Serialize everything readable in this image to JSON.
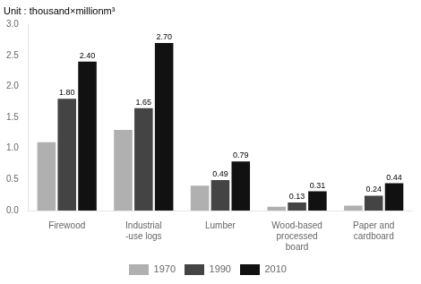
{
  "chart_data": {
    "type": "bar",
    "ylabel": "Unit : thousand×millionm³",
    "categories": [
      "Firewood",
      "Industrial\n-use logs",
      "Lumber",
      "Wood-based\nprocessed\nboard",
      "Paper and\ncardboard"
    ],
    "series": [
      {
        "name": "1970",
        "color": "#b0b0b0",
        "values": [
          1.1,
          1.3,
          0.4,
          0.06,
          0.08
        ]
      },
      {
        "name": "1990",
        "color": "#444444",
        "values": [
          1.8,
          1.65,
          0.49,
          0.13,
          0.24
        ],
        "data_labels": true,
        "value_labels": [
          "1.80",
          "1.65",
          "0.49",
          "0.13",
          "0.24"
        ]
      },
      {
        "name": "2010",
        "color": "#111111",
        "values": [
          2.4,
          2.7,
          0.79,
          0.31,
          0.44
        ],
        "data_labels": true,
        "value_labels": [
          "2.40",
          "2.70",
          "0.79",
          "0.31",
          "0.44"
        ]
      }
    ],
    "ylim": [
      0,
      3.0
    ],
    "yticks": [
      {
        "value": 0,
        "label": "0.0"
      },
      0.5,
      {
        "value": 1.0,
        "label": "1.0"
      },
      1.5,
      {
        "value": 2.0,
        "label": "2.0"
      },
      2.5,
      {
        "value": 3.0,
        "label": "3.0"
      }
    ],
    "grid": false,
    "legend": "bottom"
  }
}
